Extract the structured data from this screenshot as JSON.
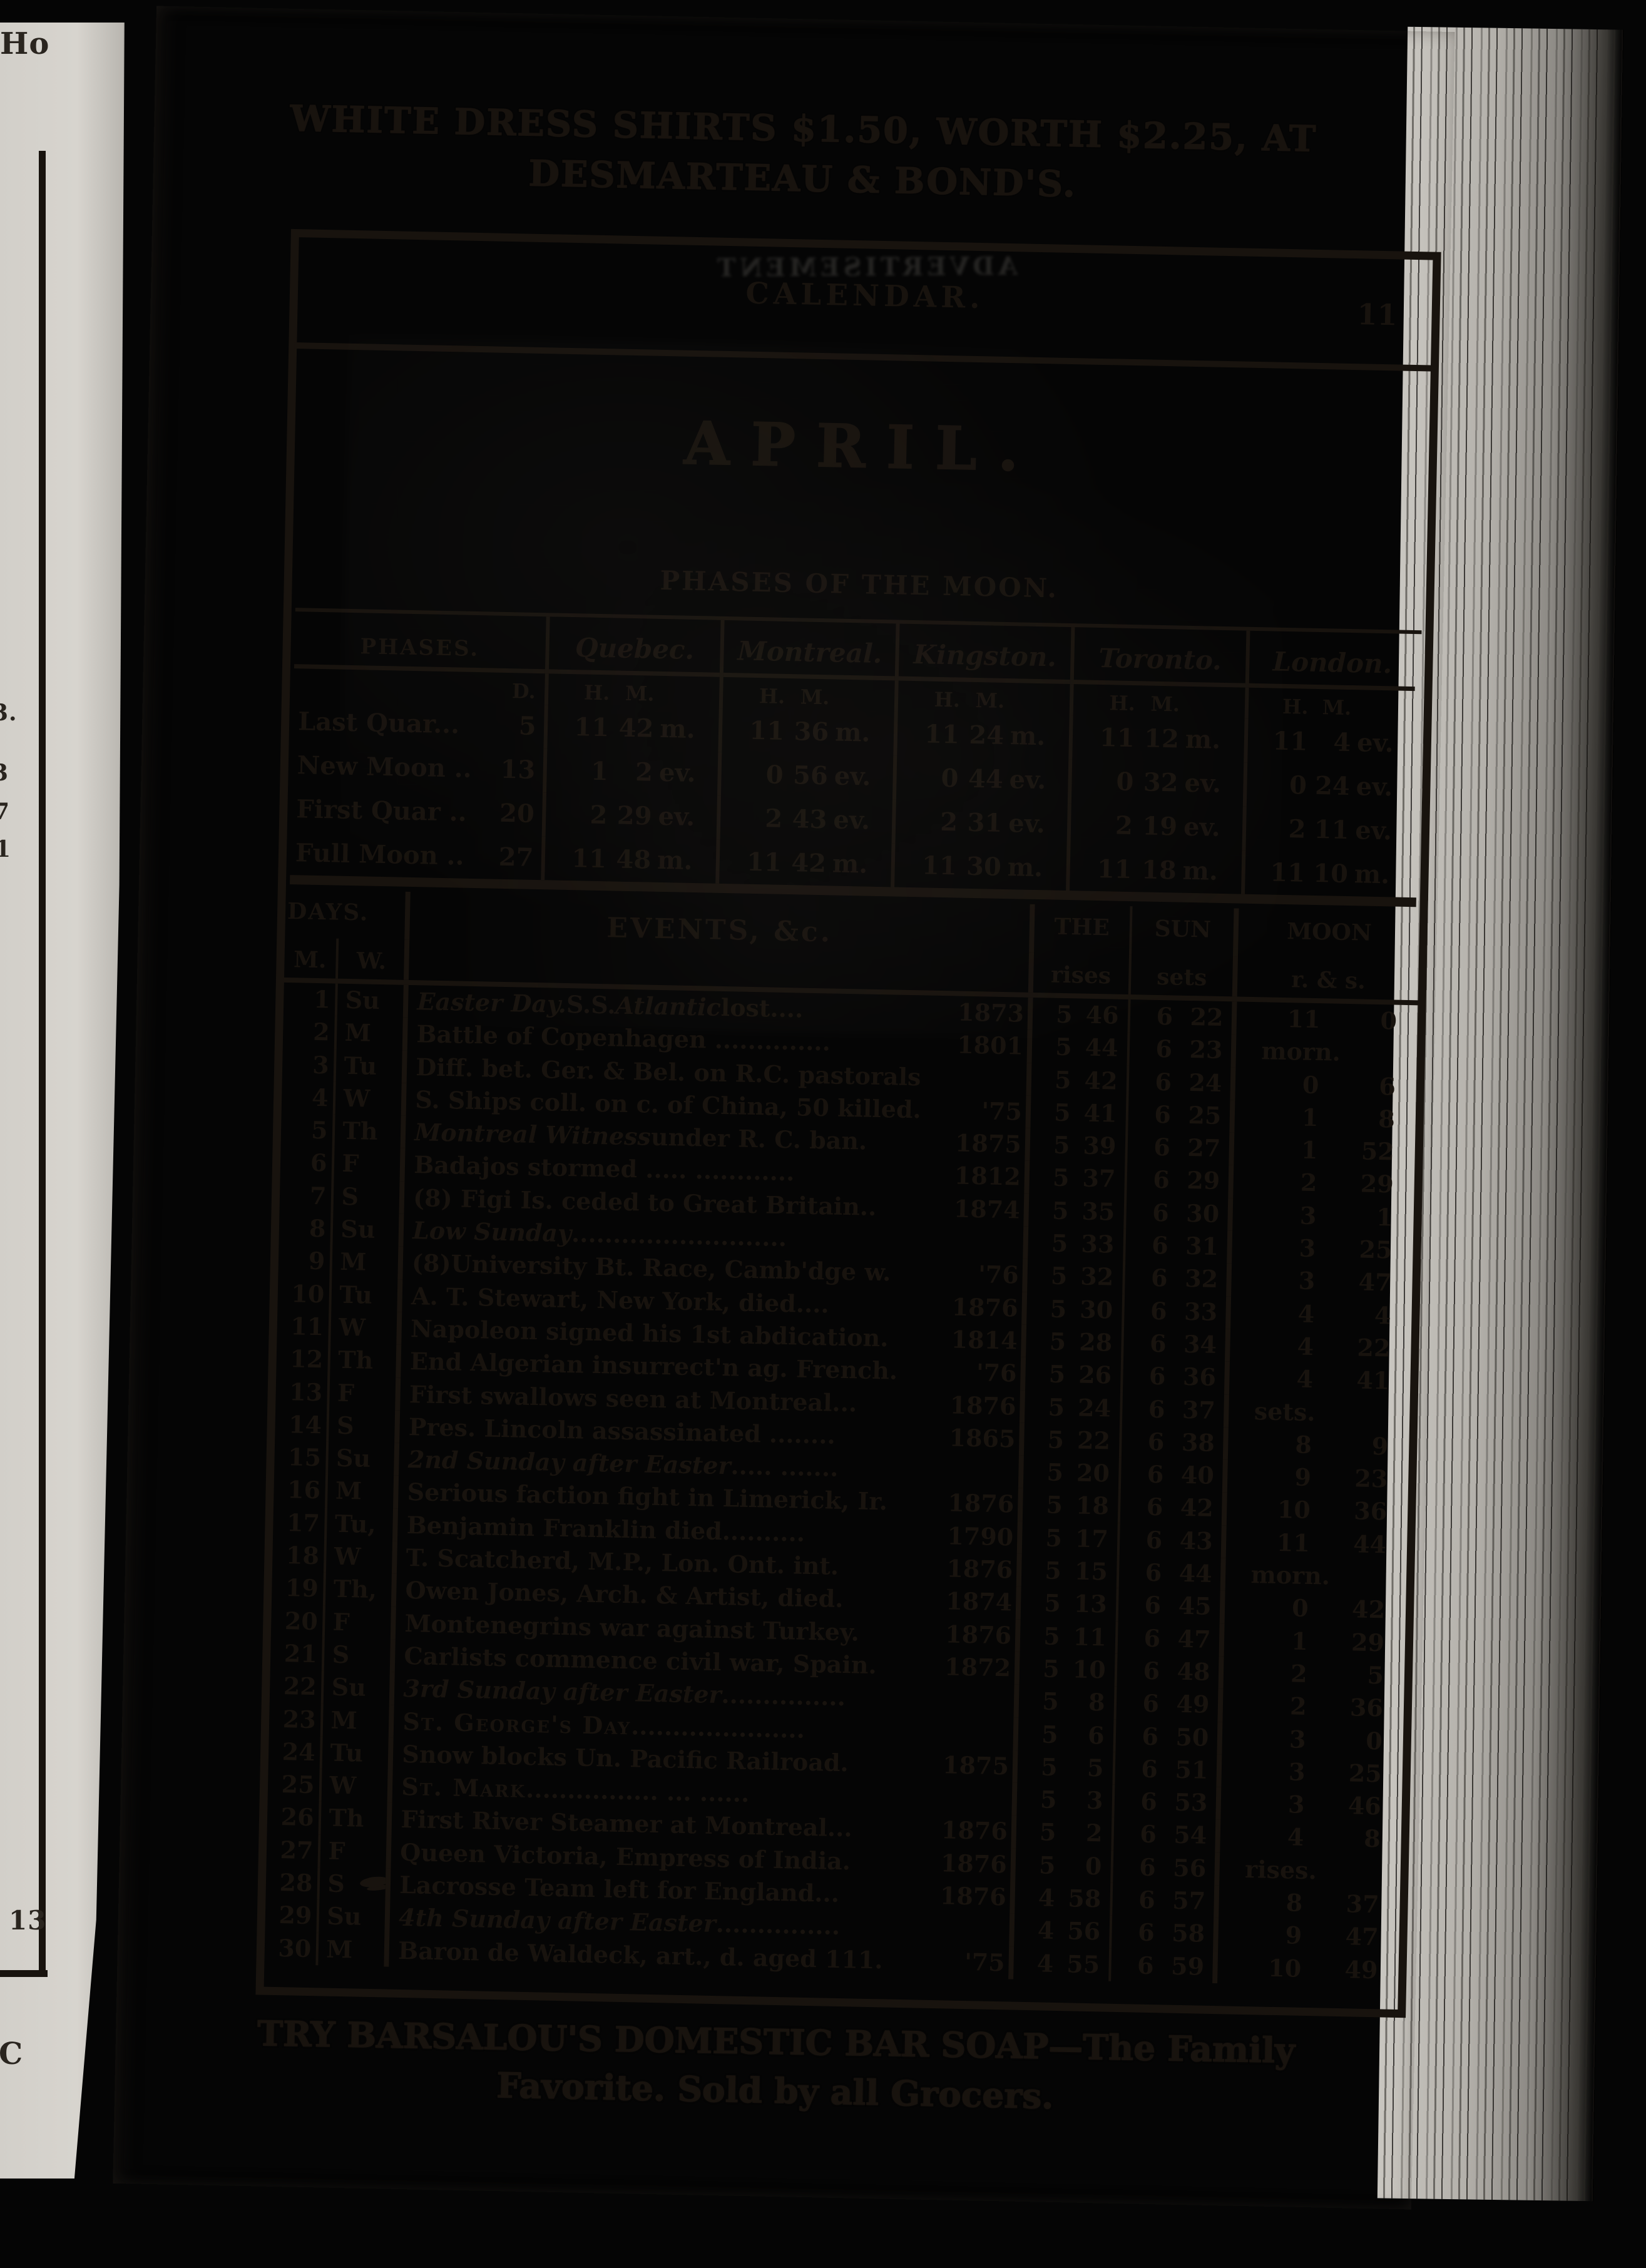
{
  "page": {
    "top_ad_line1": "WHITE DRESS SHIRTS $1.50, WORTH $2.25, AT",
    "top_ad_line2": "DESMARTEAU & BOND'S.",
    "header_title": "CALENDAR.",
    "page_number": "11",
    "ghost_text": "ADVERTISEMENT",
    "month_title": "APRIL.",
    "phases_heading": "PHASES OF THE MOON.",
    "bottom_ad_line1": "TRY BARSALOU'S DOMESTIC BAR SOAP—The Family",
    "bottom_ad_line2": "Favorite.  Sold by all Grocers."
  },
  "left_page_fragments": [
    "Ho",
    "3.",
    "3",
    "7",
    "1",
    "13",
    "C"
  ],
  "phases_table": {
    "col_headers": [
      "PHASES.",
      "Quebec.",
      "Montreal.",
      "Kingston.",
      "Toronto.",
      "London."
    ],
    "sub_day": "D.",
    "sub_h": "H.",
    "sub_m": "M.",
    "rows": [
      {
        "phase": "Last Quar...",
        "day": "5",
        "times": [
          [
            "11",
            "42",
            "m."
          ],
          [
            "11",
            "36",
            "m."
          ],
          [
            "11",
            "24",
            "m."
          ],
          [
            "11",
            "12",
            "m."
          ],
          [
            "11",
            "4",
            "ev."
          ]
        ]
      },
      {
        "phase": "New Moon ..",
        "day": "13",
        "times": [
          [
            "1",
            "2",
            "ev."
          ],
          [
            "0",
            "56",
            "ev."
          ],
          [
            "0",
            "44",
            "ev."
          ],
          [
            "0",
            "32",
            "ev."
          ],
          [
            "0",
            "24",
            "ev."
          ]
        ]
      },
      {
        "phase": "First Quar ..",
        "day": "20",
        "times": [
          [
            "2",
            "29",
            "ev."
          ],
          [
            "2",
            "43",
            "ev."
          ],
          [
            "2",
            "31",
            "ev."
          ],
          [
            "2",
            "19",
            "ev."
          ],
          [
            "2",
            "11",
            "ev."
          ]
        ]
      },
      {
        "phase": "Full Moon ..",
        "day": "27",
        "times": [
          [
            "11",
            "48",
            "m."
          ],
          [
            "11",
            "42",
            "m."
          ],
          [
            "11",
            "30",
            "m."
          ],
          [
            "11",
            "18",
            "m."
          ],
          [
            "11",
            "10",
            "m."
          ]
        ]
      }
    ]
  },
  "events_table": {
    "headers": {
      "days": "DAYS.",
      "m": "M.",
      "w": "W.",
      "events": "EVENTS, &c.",
      "sun_the": "THE",
      "sun_sun": "SUN",
      "rises": "rises",
      "sets": "sets",
      "moon": "MOON",
      "moon_sub": "r. & s."
    },
    "rows": [
      {
        "d": "1",
        "w": "Su",
        "seg": [
          {
            "t": "Easter Day.",
            "i": 1
          },
          {
            "t": "  S.S. "
          },
          {
            "t": "Atlantic",
            "i": 1
          },
          {
            "t": " lost...."
          }
        ],
        "yr": "1873",
        "rise": [
          "5",
          "46"
        ],
        "set": [
          "6",
          "22"
        ],
        "moon": [
          "11",
          "0"
        ]
      },
      {
        "d": "2",
        "w": "M",
        "seg": [
          {
            "t": "Battle of Copenhagen .............."
          }
        ],
        "yr": "1801",
        "rise": [
          "5",
          "44"
        ],
        "set": [
          "6",
          "23"
        ],
        "moon": "morn."
      },
      {
        "d": "3",
        "w": "Tu",
        "seg": [
          {
            "t": "Diff. bet. Ger. & Bel. on R.C. pastorals"
          }
        ],
        "yr": "",
        "rise": [
          "5",
          "42"
        ],
        "set": [
          "6",
          "24"
        ],
        "moon": [
          "0",
          "6"
        ]
      },
      {
        "d": "4",
        "w": "W",
        "seg": [
          {
            "t": "S. Ships coll. on c. of China, 50 killed."
          }
        ],
        "yr": "'75",
        "rise": [
          "5",
          "41"
        ],
        "set": [
          "6",
          "25"
        ],
        "moon": [
          "1",
          "8"
        ]
      },
      {
        "d": "5",
        "w": "Th",
        "seg": [
          {
            "t": "Montreal Witness",
            "i": 1
          },
          {
            "t": " under R. C. ban."
          }
        ],
        "yr": "1875",
        "rise": [
          "5",
          "39"
        ],
        "set": [
          "6",
          "27"
        ],
        "moon": [
          "1",
          "52"
        ]
      },
      {
        "d": "6",
        "w": "F",
        "seg": [
          {
            "t": "Badajos stormed ..... ............"
          }
        ],
        "yr": "1812",
        "rise": [
          "5",
          "37"
        ],
        "set": [
          "6",
          "29"
        ],
        "moon": [
          "2",
          "29"
        ]
      },
      {
        "d": "7",
        "w": "S",
        "seg": [
          {
            "t": "(8) Figi Is. ceded to Great Britain.."
          }
        ],
        "yr": "1874",
        "rise": [
          "5",
          "35"
        ],
        "set": [
          "6",
          "30"
        ],
        "moon": [
          "3",
          "1"
        ]
      },
      {
        "d": "8",
        "w": "Su",
        "seg": [
          {
            "t": "Low Sunday",
            "i": 1
          },
          {
            "t": ".........................."
          }
        ],
        "yr": "",
        "rise": [
          "5",
          "33"
        ],
        "set": [
          "6",
          "31"
        ],
        "moon": [
          "3",
          "25"
        ]
      },
      {
        "d": "9",
        "w": "M",
        "seg": [
          {
            "t": "(8)University Bt. Race, Camb'dge w."
          }
        ],
        "yr": "'76",
        "rise": [
          "5",
          "32"
        ],
        "set": [
          "6",
          "32"
        ],
        "moon": [
          "3",
          "47"
        ]
      },
      {
        "d": "10",
        "w": "Tu",
        "seg": [
          {
            "t": "A. T. Stewart, New York, died...."
          }
        ],
        "yr": "1876",
        "rise": [
          "5",
          "30"
        ],
        "set": [
          "6",
          "33"
        ],
        "moon": [
          "4",
          "4"
        ]
      },
      {
        "d": "11",
        "w": "W",
        "seg": [
          {
            "t": "Napoleon signed his 1st abdication."
          }
        ],
        "yr": "1814",
        "rise": [
          "5",
          "28"
        ],
        "set": [
          "6",
          "34"
        ],
        "moon": [
          "4",
          "22"
        ]
      },
      {
        "d": "12",
        "w": "Th",
        "seg": [
          {
            "t": "End Algerian insurrect'n ag. French."
          }
        ],
        "yr": "'76",
        "rise": [
          "5",
          "26"
        ],
        "set": [
          "6",
          "36"
        ],
        "moon": [
          "4",
          "41"
        ]
      },
      {
        "d": "13",
        "w": "F",
        "seg": [
          {
            "t": "First swallows seen at Montreal..."
          }
        ],
        "yr": "1876",
        "rise": [
          "5",
          "24"
        ],
        "set": [
          "6",
          "37"
        ],
        "moon": "sets."
      },
      {
        "d": "14",
        "w": "S",
        "seg": [
          {
            "t": "Pres. Lincoln assassinated ........"
          }
        ],
        "yr": "1865",
        "rise": [
          "5",
          "22"
        ],
        "set": [
          "6",
          "38"
        ],
        "moon": [
          "8",
          "9"
        ]
      },
      {
        "d": "15",
        "w": "Su",
        "seg": [
          {
            "t": "2nd Sunday after Easter",
            "i": 1
          },
          {
            "t": " ..... ......."
          }
        ],
        "yr": "",
        "rise": [
          "5",
          "20"
        ],
        "set": [
          "6",
          "40"
        ],
        "moon": [
          "9",
          "23"
        ]
      },
      {
        "d": "16",
        "w": "M",
        "seg": [
          {
            "t": "Serious faction fight in Limerick, Ir."
          }
        ],
        "yr": "1876",
        "rise": [
          "5",
          "18"
        ],
        "set": [
          "6",
          "42"
        ],
        "moon": [
          "10",
          "36"
        ]
      },
      {
        "d": "17",
        "w": "Tu,",
        "seg": [
          {
            "t": "Benjamin Franklin died.........."
          }
        ],
        "yr": "1790",
        "rise": [
          "5",
          "17"
        ],
        "set": [
          "6",
          "43"
        ],
        "moon": [
          "11",
          "44"
        ]
      },
      {
        "d": "18",
        "w": "W",
        "seg": [
          {
            "t": "T. Scatcherd, M.P., Lon. Ont. int."
          }
        ],
        "yr": "1876",
        "rise": [
          "5",
          "15"
        ],
        "set": [
          "6",
          "44"
        ],
        "moon": "morn."
      },
      {
        "d": "19",
        "w": "Th,",
        "seg": [
          {
            "t": "Owen Jones, Arch. & Artist, died."
          }
        ],
        "yr": "1874",
        "rise": [
          "5",
          "13"
        ],
        "set": [
          "6",
          "45"
        ],
        "moon": [
          "0",
          "42"
        ]
      },
      {
        "d": "20",
        "w": "F",
        "seg": [
          {
            "t": "Montenegrins war against Turkey."
          }
        ],
        "yr": "1876",
        "rise": [
          "5",
          "11"
        ],
        "set": [
          "6",
          "47"
        ],
        "moon": [
          "1",
          "29"
        ]
      },
      {
        "d": "21",
        "w": "S",
        "seg": [
          {
            "t": "Carlists commence civil war, Spain."
          }
        ],
        "yr": "1872",
        "rise": [
          "5",
          "10"
        ],
        "set": [
          "6",
          "48"
        ],
        "moon": [
          "2",
          "5"
        ]
      },
      {
        "d": "22",
        "w": "Su",
        "seg": [
          {
            "t": "3rd Sunday after Easter",
            "i": 1
          },
          {
            "t": "..............."
          }
        ],
        "yr": "",
        "rise": [
          "5",
          "8"
        ],
        "set": [
          "6",
          "49"
        ],
        "moon": [
          "2",
          "36"
        ]
      },
      {
        "d": "23",
        "w": "M",
        "seg": [
          {
            "t": "St. George's Day",
            "sc": 1
          },
          {
            "t": "....................."
          }
        ],
        "yr": "",
        "rise": [
          "5",
          "6"
        ],
        "set": [
          "6",
          "50"
        ],
        "moon": [
          "3",
          "0"
        ]
      },
      {
        "d": "24",
        "w": "Tu",
        "seg": [
          {
            "t": "Snow blocks Un. Pacific Railroad."
          }
        ],
        "yr": "1875",
        "rise": [
          "5",
          "5"
        ],
        "set": [
          "6",
          "51"
        ],
        "moon": [
          "3",
          "25"
        ]
      },
      {
        "d": "25",
        "w": "W",
        "seg": [
          {
            "t": "St. Mark",
            "sc": 1
          },
          {
            "t": "................ ... ......"
          }
        ],
        "yr": "",
        "rise": [
          "5",
          "3"
        ],
        "set": [
          "6",
          "53"
        ],
        "moon": [
          "3",
          "46"
        ]
      },
      {
        "d": "26",
        "w": "Th",
        "seg": [
          {
            "t": "First River Steamer at Montreal..."
          }
        ],
        "yr": "1876",
        "rise": [
          "5",
          "2"
        ],
        "set": [
          "6",
          "54"
        ],
        "moon": [
          "4",
          "8"
        ]
      },
      {
        "d": "27",
        "w": "F",
        "seg": [
          {
            "t": "Queen Victoria, Empress of India."
          }
        ],
        "yr": "1876",
        "rise": [
          "5",
          "0"
        ],
        "set": [
          "6",
          "56"
        ],
        "moon": "rises."
      },
      {
        "d": "28",
        "w": "S",
        "blot": 1,
        "seg": [
          {
            "t": "Lacrosse Team left for England..."
          }
        ],
        "yr": "1876",
        "rise": [
          "4",
          "58"
        ],
        "set": [
          "6",
          "57"
        ],
        "moon": [
          "8",
          "37"
        ]
      },
      {
        "d": "29",
        "w": "Su",
        "seg": [
          {
            "t": "4th Sunday after Easter",
            "i": 1
          },
          {
            "t": "..............."
          }
        ],
        "yr": "",
        "rise": [
          "4",
          "56"
        ],
        "set": [
          "6",
          "58"
        ],
        "moon": [
          "9",
          "47"
        ]
      },
      {
        "d": "30",
        "w": "M",
        "seg": [
          {
            "t": "Baron de Waldeck, art., d. aged 111."
          }
        ],
        "yr": "'75",
        "rise": [
          "4",
          "55"
        ],
        "set": [
          "6",
          "59"
        ],
        "moon": [
          "10",
          "49"
        ]
      }
    ]
  }
}
